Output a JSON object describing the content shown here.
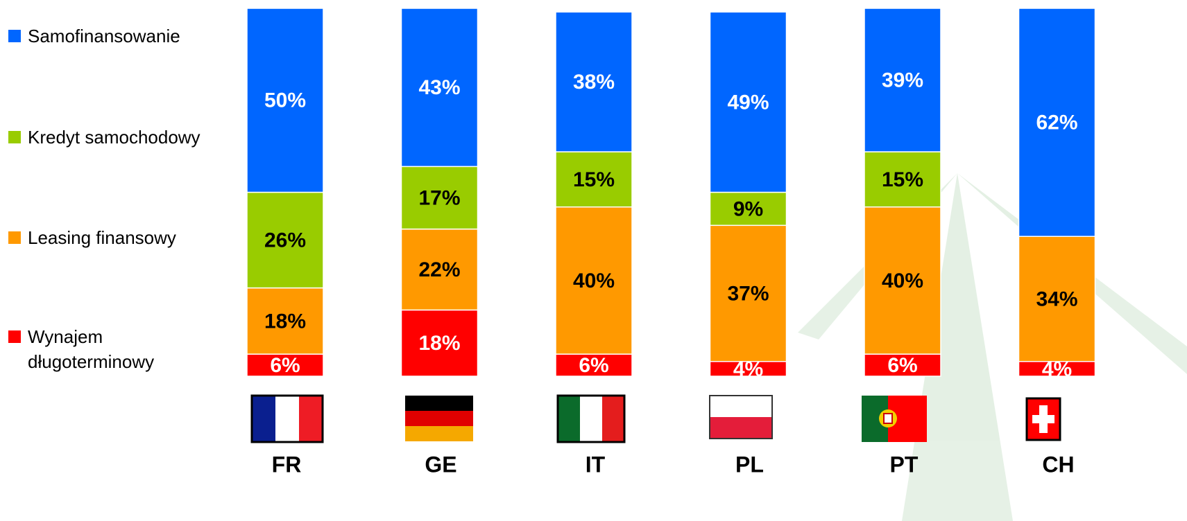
{
  "chart_data": {
    "type": "bar",
    "stacked": true,
    "categories": [
      "FR",
      "GE",
      "IT",
      "PL",
      "PT",
      "CH"
    ],
    "ylim": [
      0,
      100
    ],
    "series": [
      {
        "name": "Wynajem długoterminowy",
        "color": "#ff0000",
        "label_color": "#ffffff",
        "values": [
          6,
          18,
          6,
          4,
          6,
          4
        ],
        "value_labels": [
          "6%",
          "18%",
          "6%",
          "4%",
          "6%",
          "4%"
        ]
      },
      {
        "name": "Leasing finansowy",
        "color": "#ff9900",
        "label_color": "#000000",
        "values": [
          18,
          22,
          40,
          37,
          40,
          34
        ],
        "value_labels": [
          "18%",
          "22%",
          "40%",
          "37%",
          "40%",
          "34%"
        ]
      },
      {
        "name": "Kredyt samochodowy",
        "color": "#99cc00",
        "label_color": "#000000",
        "values": [
          26,
          17,
          15,
          9,
          15,
          null
        ],
        "value_labels": [
          "26%",
          "17%",
          "15%",
          "9%",
          "15%",
          null
        ]
      },
      {
        "name": "Samofinansowanie",
        "color": "#0066ff",
        "label_color": "#ffffff",
        "values": [
          50,
          43,
          38,
          49,
          39,
          62
        ],
        "value_labels": [
          "50%",
          "43%",
          "38%",
          "49%",
          "39%",
          "62%"
        ]
      }
    ]
  }
}
